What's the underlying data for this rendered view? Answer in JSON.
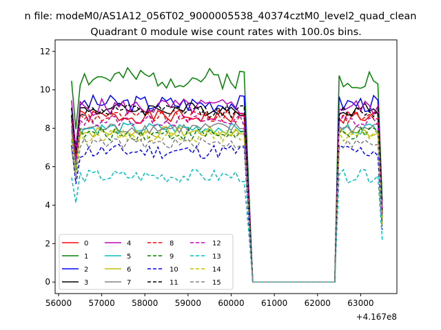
{
  "chart_data": {
    "type": "line",
    "suptitle": "n file: modeM0/AS1A12_056T02_9000005538_40374cztM0_level2_quad_clean",
    "title": "Quadrant 0 module wise count rates with 100.0s bins.",
    "x_offset_label": "+4.167e8",
    "xlim": [
      55920,
      63840
    ],
    "ylim": [
      -0.6,
      12.6
    ],
    "xticks": [
      56000,
      57000,
      58000,
      59000,
      60000,
      61000,
      62000,
      63000
    ],
    "yticks": [
      0,
      2,
      4,
      6,
      8,
      10,
      12
    ],
    "grid": false,
    "legend_position": "lower-left",
    "legend_columns": 4,
    "segments": [
      [
        56300,
        60500
      ],
      [
        62400,
        63500
      ]
    ],
    "series": [
      {
        "name": "0",
        "color": "#ff0000",
        "dash": "solid",
        "level": 8.6,
        "amp": 0.35,
        "seed": 1
      },
      {
        "name": "1",
        "color": "#008000",
        "dash": "solid",
        "level": 10.6,
        "amp": 0.55,
        "seed": 2
      },
      {
        "name": "2",
        "color": "#0000ff",
        "dash": "solid",
        "level": 9.3,
        "amp": 0.45,
        "seed": 3
      },
      {
        "name": "3",
        "color": "#000000",
        "dash": "solid",
        "level": 9.0,
        "amp": 0.35,
        "seed": 4
      },
      {
        "name": "4",
        "color": "#bf00bf",
        "dash": "solid",
        "level": 9.1,
        "amp": 0.45,
        "seed": 5
      },
      {
        "name": "5",
        "color": "#00bfbf",
        "dash": "solid",
        "level": 8.0,
        "amp": 0.3,
        "seed": 6
      },
      {
        "name": "6",
        "color": "#bfbf00",
        "dash": "solid",
        "level": 7.8,
        "amp": 0.3,
        "seed": 7
      },
      {
        "name": "7",
        "color": "#808080",
        "dash": "solid",
        "level": 8.0,
        "amp": 0.3,
        "seed": 8
      },
      {
        "name": "8",
        "color": "#ff0000",
        "dash": "dashed",
        "level": 8.6,
        "amp": 0.35,
        "seed": 9
      },
      {
        "name": "9",
        "color": "#008000",
        "dash": "dashed",
        "level": 7.7,
        "amp": 0.35,
        "seed": 10
      },
      {
        "name": "10",
        "color": "#0000ff",
        "dash": "dashed",
        "level": 6.8,
        "amp": 0.4,
        "seed": 11
      },
      {
        "name": "11",
        "color": "#000000",
        "dash": "dashed",
        "level": 8.9,
        "amp": 0.35,
        "seed": 12
      },
      {
        "name": "12",
        "color": "#bf00bf",
        "dash": "dashed",
        "level": 8.4,
        "amp": 0.3,
        "seed": 13
      },
      {
        "name": "13",
        "color": "#00bfbf",
        "dash": "dashed",
        "level": 5.5,
        "amp": 0.35,
        "seed": 14
      },
      {
        "name": "14",
        "color": "#bfbf00",
        "dash": "dashed",
        "level": 7.6,
        "amp": 0.3,
        "seed": 15
      },
      {
        "name": "15",
        "color": "#808080",
        "dash": "dashed",
        "level": 7.2,
        "amp": 0.3,
        "seed": 16
      }
    ]
  }
}
